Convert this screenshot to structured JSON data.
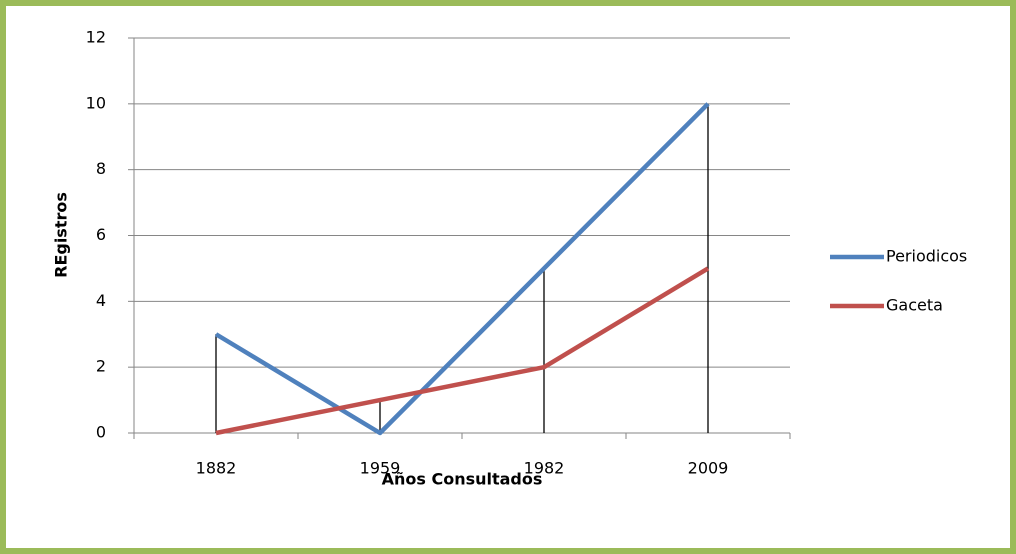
{
  "chart_data": {
    "type": "line",
    "xlabel": "Años Consultados",
    "ylabel": "REgistros",
    "categories": [
      "1882",
      "1959",
      "1982",
      "2009"
    ],
    "series": [
      {
        "name": "Periodicos",
        "color": "#4f81bd",
        "values": [
          3,
          0,
          5,
          10
        ]
      },
      {
        "name": "Gaceta",
        "color": "#c0504d",
        "values": [
          0,
          1,
          2,
          5
        ]
      }
    ],
    "ylim": [
      0,
      12
    ],
    "yticks": [
      0,
      2,
      4,
      6,
      8,
      10,
      12
    ],
    "grid": true,
    "drop_lines": true,
    "legend": "right"
  }
}
